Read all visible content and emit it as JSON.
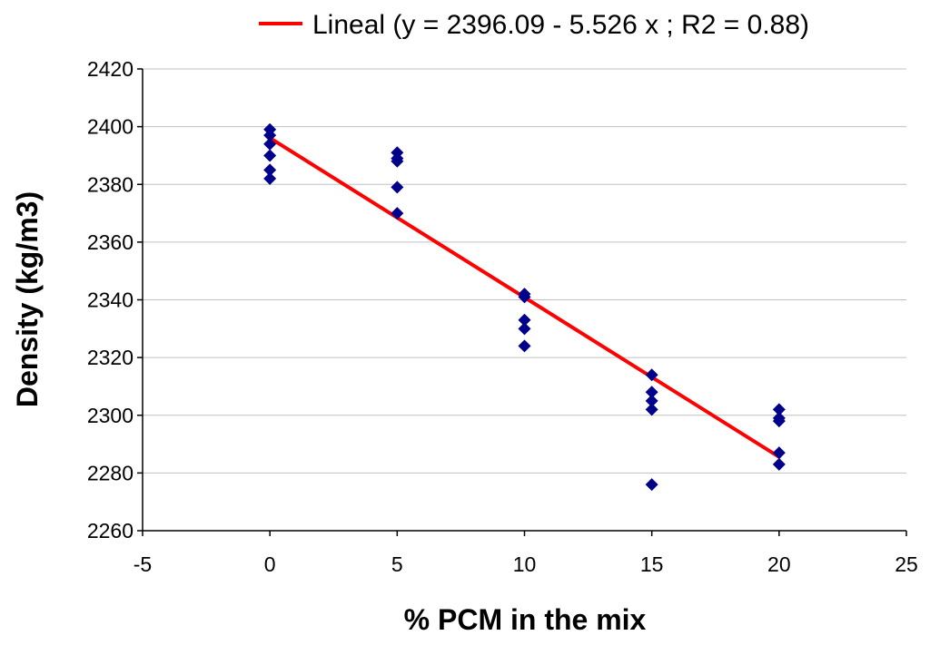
{
  "chart_data": {
    "type": "scatter",
    "title": "",
    "xlabel": "% PCM in the mix",
    "ylabel": "Density (kg/m3)",
    "xlim": [
      -5,
      25
    ],
    "ylim": [
      2260,
      2420
    ],
    "x_ticks": [
      -5,
      0,
      5,
      10,
      15,
      20,
      25
    ],
    "y_ticks": [
      2260,
      2280,
      2300,
      2320,
      2340,
      2360,
      2380,
      2400,
      2420
    ],
    "grid": "horizontal",
    "legend_position": "top",
    "colors": {
      "points": "#00008B",
      "trendline": "#FF0000",
      "grid": "#C0C0C0"
    },
    "series": [
      {
        "name": "Density",
        "marker": "diamond",
        "points": [
          [
            0,
            2399
          ],
          [
            0,
            2397
          ],
          [
            0,
            2394
          ],
          [
            0,
            2390
          ],
          [
            0,
            2385
          ],
          [
            0,
            2382
          ],
          [
            5,
            2391
          ],
          [
            5,
            2389
          ],
          [
            5,
            2388
          ],
          [
            5,
            2379
          ],
          [
            5,
            2370
          ],
          [
            10,
            2342
          ],
          [
            10,
            2341
          ],
          [
            10,
            2333
          ],
          [
            10,
            2330
          ],
          [
            10,
            2324
          ],
          [
            15,
            2314
          ],
          [
            15,
            2308
          ],
          [
            15,
            2305
          ],
          [
            15,
            2302
          ],
          [
            15,
            2276
          ],
          [
            20,
            2302
          ],
          [
            20,
            2299
          ],
          [
            20,
            2298
          ],
          [
            20,
            2287
          ],
          [
            20,
            2283
          ]
        ]
      }
    ],
    "trendline": {
      "name": "Lineal (y = 2396.09 - 5.526 x ; R2 = 0.88)",
      "intercept": 2396.09,
      "slope": -5.526,
      "r2": 0.88,
      "x_range": [
        0,
        20
      ]
    }
  }
}
